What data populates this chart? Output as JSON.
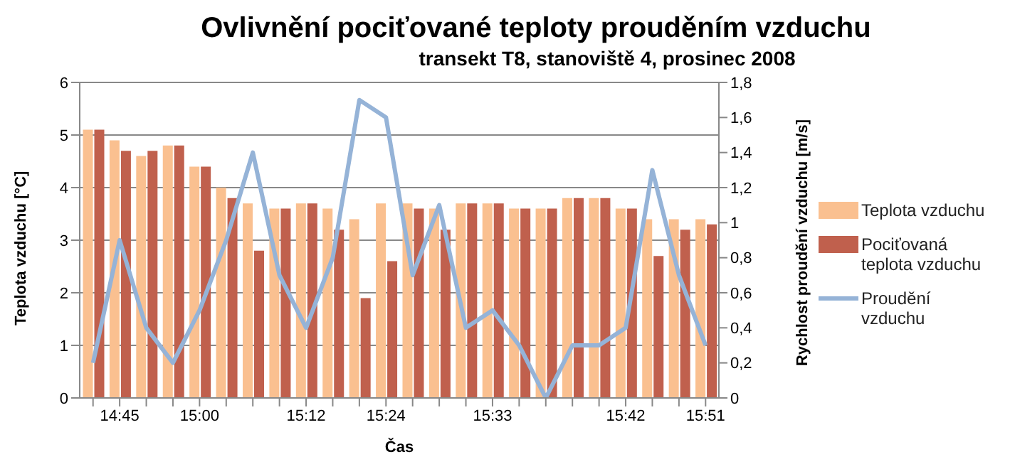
{
  "chart_data": {
    "type": "bar",
    "title": "Ovlivnění pociťované teploty prouděním vzduchu",
    "subtitle": "transekt T8, stanoviště 4, prosinec 2008",
    "xlabel": "Čas",
    "ylabel": "Teplota vzduchu  [°C]",
    "y2label": "Rychlost  proudění vzduchu  [m/s]",
    "categories": [
      null,
      "14:45",
      null,
      null,
      "15:00",
      null,
      null,
      null,
      "15:12",
      null,
      null,
      "15:24",
      null,
      null,
      null,
      "15:33",
      null,
      null,
      null,
      null,
      "15:42",
      null,
      null,
      "15:51"
    ],
    "series": [
      {
        "name": "Teplota vzduchu",
        "color": "#fac090",
        "values": [
          5.1,
          4.9,
          4.6,
          4.8,
          4.4,
          4.0,
          3.7,
          3.6,
          3.7,
          3.6,
          3.4,
          3.7,
          3.7,
          3.6,
          3.7,
          3.7,
          3.6,
          3.6,
          3.8,
          3.8,
          3.6,
          3.4,
          3.4,
          3.4
        ]
      },
      {
        "name": "Pociťovaná teplota vzduchu",
        "color": "#c0604d",
        "values": [
          5.1,
          4.7,
          4.7,
          4.8,
          4.4,
          3.8,
          2.8,
          3.6,
          3.7,
          3.2,
          1.9,
          2.6,
          3.6,
          3.2,
          3.7,
          3.7,
          3.6,
          3.6,
          3.8,
          3.8,
          3.6,
          2.7,
          3.2,
          3.3
        ]
      },
      {
        "name": "Proudění vzduchu",
        "type": "line",
        "axis": "y2",
        "color": "#95b3d7",
        "values": [
          0.2,
          0.9,
          0.4,
          0.2,
          0.5,
          0.9,
          1.4,
          0.7,
          0.4,
          0.8,
          1.7,
          1.6,
          0.7,
          1.1,
          0.4,
          0.5,
          0.3,
          0,
          0.3,
          0.3,
          0.4,
          1.3,
          0.7,
          0.3
        ]
      }
    ],
    "ylim": [
      0,
      6
    ],
    "yticks": [
      0,
      1,
      2,
      3,
      4,
      5,
      6
    ],
    "y2lim": [
      0,
      1.8
    ],
    "y2ticks": [
      {
        "value": 0,
        "label": "0"
      },
      {
        "value": 0.2,
        "label": "0,2"
      },
      {
        "value": 0.4,
        "label": "0,4"
      },
      {
        "value": 0.6,
        "label": "0,6"
      },
      {
        "value": 0.8,
        "label": "0,8"
      },
      {
        "value": 1,
        "label": "1"
      },
      {
        "value": 1.2,
        "label": "1,2"
      },
      {
        "value": 1.4,
        "label": "1,4"
      },
      {
        "value": 1.6,
        "label": "1,6"
      },
      {
        "value": 1.8,
        "label": "1,8"
      }
    ],
    "grid": "y",
    "legend": "right",
    "marker": "none",
    "line_style": "solid"
  }
}
